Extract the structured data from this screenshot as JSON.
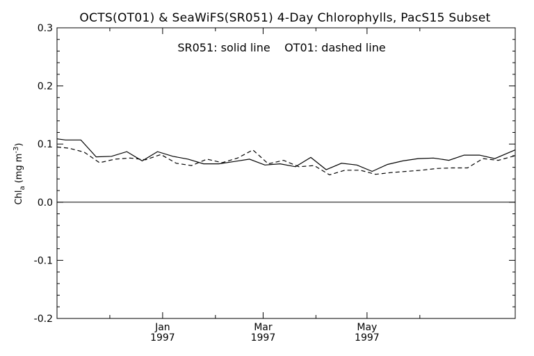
{
  "chart_data": {
    "type": "line",
    "title": "OCTS(OT01) & SeaWiFS(SR051) 4-Day Chlorophylls, PacS15 Subset",
    "annotation": "SR051: solid line    OT01: dashed line",
    "ylabel": "Chl",
    "ylabel_sub": "a",
    "ylabel_unit": "(mg m",
    "ylabel_sup": "-3",
    "ylabel_close": ")",
    "ylim": [
      -0.2,
      0.3
    ],
    "yticks": [
      -0.2,
      -0.1,
      0.0,
      0.1,
      0.2,
      0.3
    ],
    "ytick_labels": [
      "-0.2",
      "-0.1",
      "0.0",
      "0.1",
      "0.2",
      "0.3"
    ],
    "xlim": [
      "1996-10-31",
      "1997-07-27"
    ],
    "xticks": [
      {
        "date": "1997-01-01",
        "month": "Jan",
        "year": "1997"
      },
      {
        "date": "1997-03-01",
        "month": "Mar",
        "year": "1997"
      },
      {
        "date": "1997-05-01",
        "month": "May",
        "year": "1997"
      }
    ],
    "xtick_minor": [
      "1996-12-01",
      "1997-02-01",
      "1997-04-01",
      "1997-06-01"
    ],
    "zero_line": true,
    "grid": false,
    "series": [
      {
        "name": "SR051",
        "style": "solid",
        "color": "#000000",
        "points": [
          [
            "1996-10-31",
            0.109
          ],
          [
            "1996-11-05",
            0.107
          ],
          [
            "1996-11-14",
            0.107
          ],
          [
            "1996-11-23",
            0.078
          ],
          [
            "1996-12-02",
            0.079
          ],
          [
            "1996-12-11",
            0.087
          ],
          [
            "1996-12-20",
            0.071
          ],
          [
            "1996-12-29",
            0.087
          ],
          [
            "1997-01-07",
            0.079
          ],
          [
            "1997-01-16",
            0.074
          ],
          [
            "1997-01-25",
            0.066
          ],
          [
            "1997-02-03",
            0.066
          ],
          [
            "1997-02-12",
            0.07
          ],
          [
            "1997-02-21",
            0.074
          ],
          [
            "1997-03-02",
            0.064
          ],
          [
            "1997-03-11",
            0.066
          ],
          [
            "1997-03-20",
            0.061
          ],
          [
            "1997-03-29",
            0.077
          ],
          [
            "1997-04-07",
            0.056
          ],
          [
            "1997-04-16",
            0.067
          ],
          [
            "1997-04-25",
            0.064
          ],
          [
            "1997-05-04",
            0.053
          ],
          [
            "1997-05-13",
            0.065
          ],
          [
            "1997-05-22",
            0.071
          ],
          [
            "1997-05-31",
            0.075
          ],
          [
            "1997-06-09",
            0.076
          ],
          [
            "1997-06-18",
            0.072
          ],
          [
            "1997-06-27",
            0.081
          ],
          [
            "1997-07-06",
            0.081
          ],
          [
            "1997-07-15",
            0.075
          ],
          [
            "1997-07-27",
            0.09
          ]
        ]
      },
      {
        "name": "OT01",
        "style": "dashed",
        "color": "#000000",
        "points": [
          [
            "1996-10-31",
            0.095
          ],
          [
            "1996-11-07",
            0.093
          ],
          [
            "1996-11-16",
            0.086
          ],
          [
            "1996-11-25",
            0.068
          ],
          [
            "1996-12-04",
            0.074
          ],
          [
            "1996-12-13",
            0.076
          ],
          [
            "1996-12-22",
            0.073
          ],
          [
            "1996-12-31",
            0.082
          ],
          [
            "1997-01-09",
            0.067
          ],
          [
            "1997-01-18",
            0.063
          ],
          [
            "1997-01-27",
            0.074
          ],
          [
            "1997-02-05",
            0.068
          ],
          [
            "1997-02-14",
            0.076
          ],
          [
            "1997-02-23",
            0.09
          ],
          [
            "1997-03-04",
            0.066
          ],
          [
            "1997-03-13",
            0.072
          ],
          [
            "1997-03-22",
            0.061
          ],
          [
            "1997-03-31",
            0.063
          ],
          [
            "1997-04-09",
            0.047
          ],
          [
            "1997-04-18",
            0.055
          ],
          [
            "1997-04-27",
            0.055
          ],
          [
            "1997-05-06",
            0.048
          ],
          [
            "1997-05-15",
            0.051
          ],
          [
            "1997-05-24",
            0.053
          ],
          [
            "1997-06-02",
            0.055
          ],
          [
            "1997-06-11",
            0.058
          ],
          [
            "1997-06-20",
            0.059
          ],
          [
            "1997-06-29",
            0.059
          ],
          [
            "1997-07-08",
            0.075
          ],
          [
            "1997-07-17",
            0.072
          ],
          [
            "1997-07-27",
            0.08
          ]
        ]
      }
    ]
  }
}
